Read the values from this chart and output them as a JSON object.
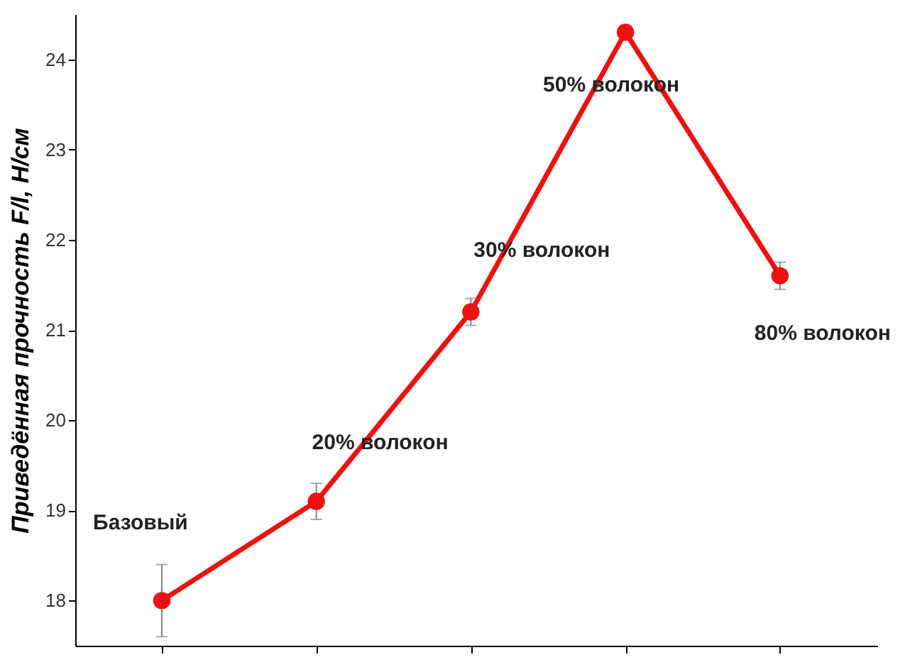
{
  "chart_data": {
    "type": "line",
    "ylabel": "Приведённая прочность F/l, Н/см",
    "categories": [
      null,
      null,
      null,
      null,
      null
    ],
    "series": [
      {
        "color": "#ee1111",
        "values": [
          18.0,
          19.1,
          21.2,
          24.3,
          21.6
        ],
        "errors": [
          0.4,
          0.2,
          0.15,
          null,
          0.15
        ]
      }
    ],
    "ylim": [
      17.5,
      24.5
    ],
    "yticks": [
      18,
      19,
      20,
      21,
      22,
      23,
      24
    ],
    "marker": "circle",
    "line_style": "solid",
    "grid": false,
    "tick_labels": "y",
    "annotations": [
      "Базовый",
      "20% волокон",
      "30% волокон",
      "50% волокон",
      "80% волокон"
    ]
  }
}
